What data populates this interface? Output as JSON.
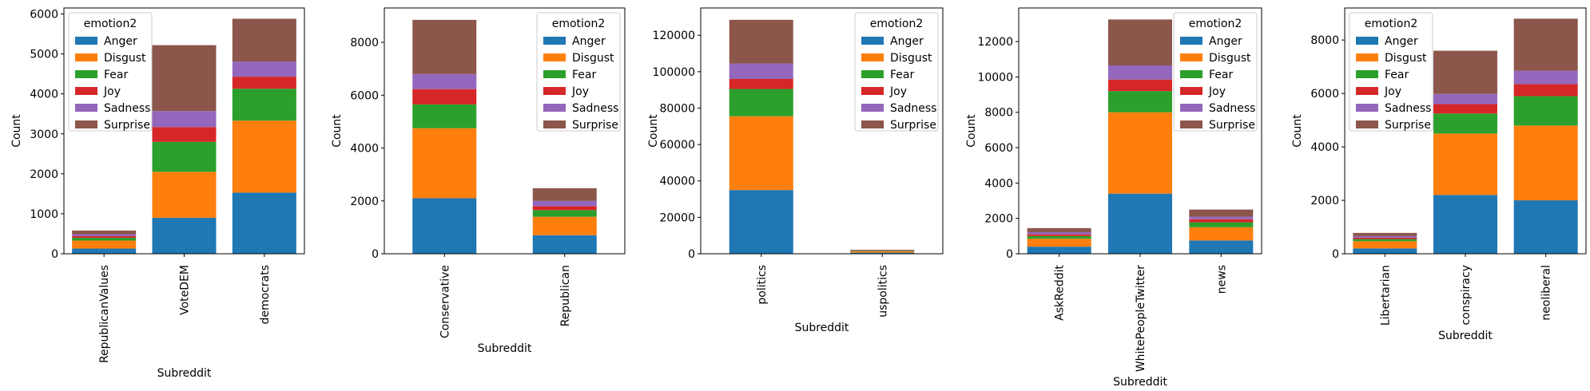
{
  "legend_title": "emotion2",
  "emotions": [
    "Anger",
    "Disgust",
    "Fear",
    "Joy",
    "Sadness",
    "Surprise"
  ],
  "colors": {
    "Anger": "#1f77b4",
    "Disgust": "#ff7f0e",
    "Fear": "#2ca02c",
    "Joy": "#d62728",
    "Sadness": "#9467bd",
    "Surprise": "#8c564b"
  },
  "chart_data": [
    {
      "type": "bar",
      "stacked": true,
      "xlabel": "Subreddit",
      "ylabel": "Count",
      "ylim": [
        0,
        6150
      ],
      "yticks": [
        0,
        1000,
        2000,
        3000,
        4000,
        5000,
        6000
      ],
      "legend_position": "upper-left",
      "categories": [
        "RepublicanValues",
        "VoteDEM",
        "democrats"
      ],
      "series": [
        {
          "name": "Anger",
          "values": [
            130,
            900,
            1530
          ]
        },
        {
          "name": "Disgust",
          "values": [
            200,
            1150,
            1800
          ]
        },
        {
          "name": "Fear",
          "values": [
            70,
            750,
            800
          ]
        },
        {
          "name": "Joy",
          "values": [
            40,
            370,
            300
          ]
        },
        {
          "name": "Sadness",
          "values": [
            50,
            400,
            380
          ]
        },
        {
          "name": "Surprise",
          "values": [
            90,
            1650,
            1070
          ]
        }
      ]
    },
    {
      "type": "bar",
      "stacked": true,
      "xlabel": "Subreddit",
      "ylabel": "Count",
      "ylim": [
        0,
        9300
      ],
      "yticks": [
        0,
        2000,
        4000,
        6000,
        8000
      ],
      "legend_position": "upper-right",
      "categories": [
        "Conservative",
        "Republican"
      ],
      "series": [
        {
          "name": "Anger",
          "values": [
            2100,
            700
          ]
        },
        {
          "name": "Disgust",
          "values": [
            2650,
            700
          ]
        },
        {
          "name": "Fear",
          "values": [
            900,
            250
          ]
        },
        {
          "name": "Joy",
          "values": [
            580,
            150
          ]
        },
        {
          "name": "Sadness",
          "values": [
            570,
            200
          ]
        },
        {
          "name": "Surprise",
          "values": [
            2050,
            480
          ]
        }
      ]
    },
    {
      "type": "bar",
      "stacked": true,
      "xlabel": "Subreddit",
      "ylabel": "Count",
      "ylim": [
        0,
        135000
      ],
      "yticks": [
        0,
        20000,
        40000,
        60000,
        80000,
        100000,
        120000
      ],
      "legend_position": "upper-right",
      "categories": [
        "politics",
        "uspolitics"
      ],
      "series": [
        {
          "name": "Anger",
          "values": [
            35000,
            600
          ]
        },
        {
          "name": "Disgust",
          "values": [
            40500,
            700
          ]
        },
        {
          "name": "Fear",
          "values": [
            15000,
            250
          ]
        },
        {
          "name": "Joy",
          "values": [
            5500,
            100
          ]
        },
        {
          "name": "Sadness",
          "values": [
            8500,
            150
          ]
        },
        {
          "name": "Surprise",
          "values": [
            24000,
            400
          ]
        }
      ]
    },
    {
      "type": "bar",
      "stacked": true,
      "xlabel": "Subreddit",
      "ylabel": "Count",
      "ylim": [
        0,
        13900
      ],
      "yticks": [
        0,
        2000,
        4000,
        6000,
        8000,
        10000,
        12000
      ],
      "legend_position": "upper-right",
      "categories": [
        "AskReddit",
        "WhitePeopleTwitter",
        "news"
      ],
      "series": [
        {
          "name": "Anger",
          "values": [
            400,
            3400,
            750
          ]
        },
        {
          "name": "Disgust",
          "values": [
            450,
            4600,
            750
          ]
        },
        {
          "name": "Fear",
          "values": [
            150,
            1200,
            280
          ]
        },
        {
          "name": "Joy",
          "values": [
            100,
            650,
            170
          ]
        },
        {
          "name": "Sadness",
          "values": [
            120,
            800,
            150
          ]
        },
        {
          "name": "Surprise",
          "values": [
            230,
            2600,
            400
          ]
        }
      ]
    },
    {
      "type": "bar",
      "stacked": true,
      "xlabel": "Subreddit",
      "ylabel": "Count",
      "ylim": [
        0,
        9200
      ],
      "yticks": [
        0,
        2000,
        4000,
        6000,
        8000
      ],
      "legend_position": "upper-left",
      "categories": [
        "Libertarian",
        "conspiracy",
        "neoliberal"
      ],
      "series": [
        {
          "name": "Anger",
          "values": [
            200,
            2200,
            2000
          ]
        },
        {
          "name": "Disgust",
          "values": [
            270,
            2300,
            2800
          ]
        },
        {
          "name": "Fear",
          "values": [
            80,
            750,
            1100
          ]
        },
        {
          "name": "Joy",
          "values": [
            50,
            350,
            450
          ]
        },
        {
          "name": "Sadness",
          "values": [
            60,
            380,
            500
          ]
        },
        {
          "name": "Surprise",
          "values": [
            120,
            1620,
            1950
          ]
        }
      ]
    }
  ]
}
